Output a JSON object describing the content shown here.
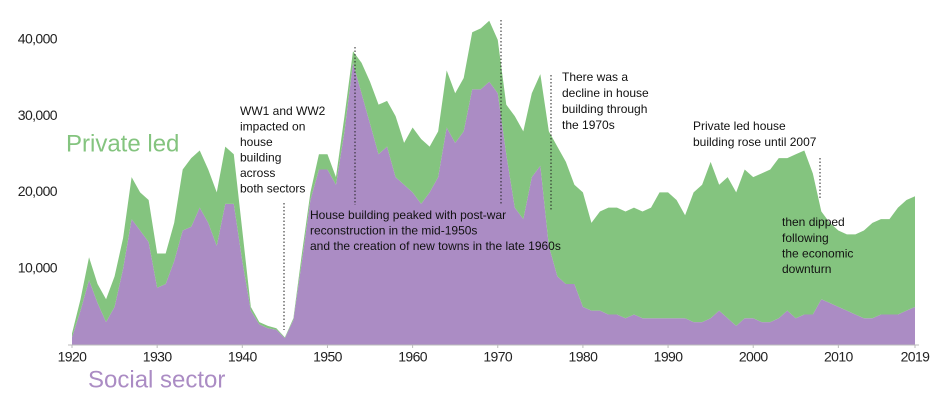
{
  "chart_data": {
    "type": "stacked_area",
    "x": [
      1920,
      1921,
      1922,
      1923,
      1924,
      1925,
      1926,
      1927,
      1928,
      1929,
      1930,
      1931,
      1932,
      1933,
      1934,
      1935,
      1936,
      1937,
      1938,
      1939,
      1940,
      1941,
      1942,
      1943,
      1944,
      1945,
      1946,
      1947,
      1948,
      1949,
      1950,
      1951,
      1952,
      1953,
      1954,
      1955,
      1956,
      1957,
      1958,
      1959,
      1960,
      1961,
      1962,
      1963,
      1964,
      1965,
      1966,
      1967,
      1968,
      1969,
      1970,
      1971,
      1972,
      1973,
      1974,
      1975,
      1976,
      1977,
      1978,
      1979,
      1980,
      1981,
      1982,
      1983,
      1984,
      1985,
      1986,
      1987,
      1988,
      1989,
      1990,
      1991,
      1992,
      1993,
      1994,
      1995,
      1996,
      1997,
      1998,
      1999,
      2000,
      2001,
      2002,
      2003,
      2004,
      2005,
      2006,
      2007,
      2008,
      2009,
      2010,
      2011,
      2012,
      2013,
      2014,
      2015,
      2016,
      2017,
      2018,
      2019
    ],
    "series": [
      {
        "name": "Social sector",
        "color": "#ab8cc4",
        "values": [
          1000,
          4500,
          8500,
          5500,
          3000,
          5000,
          10000,
          16500,
          15000,
          13500,
          7500,
          8000,
          11000,
          15000,
          15500,
          18000,
          16000,
          13000,
          18500,
          18500,
          11000,
          4500,
          2700,
          2200,
          2000,
          900,
          3300,
          11000,
          19000,
          23000,
          23000,
          21000,
          28000,
          37000,
          33000,
          29000,
          25000,
          26000,
          22000,
          21000,
          20000,
          18500,
          20000,
          22000,
          28500,
          26500,
          28000,
          33500,
          33500,
          34500,
          33000,
          25000,
          18000,
          16500,
          22000,
          23500,
          13000,
          9000,
          8000,
          8000,
          5000,
          4500,
          4500,
          4000,
          4000,
          3500,
          4000,
          3500,
          3500,
          3500,
          3500,
          3500,
          3500,
          3000,
          3000,
          3500,
          4500,
          3500,
          2500,
          3500,
          3500,
          3000,
          3000,
          3500,
          4500,
          3500,
          4000,
          4000,
          6000,
          5500,
          5000,
          4500,
          4000,
          3500,
          3500,
          4000,
          4000,
          4000,
          4500,
          5000
        ]
      },
      {
        "name": "Private led",
        "color": "#84c47f",
        "values": [
          500,
          1500,
          3000,
          2500,
          3000,
          4000,
          4000,
          5500,
          5000,
          5500,
          4500,
          4000,
          5000,
          8000,
          9000,
          7500,
          7000,
          7000,
          7500,
          6500,
          4000,
          500,
          300,
          300,
          200,
          100,
          200,
          1000,
          1000,
          2000,
          2000,
          1000,
          2000,
          1500,
          4000,
          5500,
          6500,
          6000,
          8000,
          5500,
          8500,
          8500,
          6000,
          6000,
          7500,
          6500,
          7000,
          7500,
          8000,
          8000,
          7000,
          6500,
          12000,
          11500,
          11000,
          12000,
          15000,
          17000,
          16000,
          13000,
          15000,
          11500,
          13000,
          14000,
          14000,
          14000,
          14000,
          14000,
          14500,
          16500,
          16500,
          15500,
          13500,
          17000,
          18000,
          20500,
          16500,
          18500,
          17500,
          19500,
          18500,
          19500,
          20000,
          21000,
          20000,
          21500,
          21500,
          18500,
          11500,
          10500,
          10000,
          10000,
          10500,
          11500,
          12500,
          12500,
          12500,
          14000,
          14500,
          14500
        ]
      }
    ],
    "xlim": [
      1920,
      2019
    ],
    "ylim": [
      0,
      44000
    ],
    "xticks": [
      1920,
      1930,
      1940,
      1950,
      1960,
      1970,
      1980,
      1990,
      2000,
      2010,
      2019
    ],
    "yticks": [
      {
        "value": 10000,
        "label": "10,000"
      },
      {
        "value": 20000,
        "label": "20,000"
      },
      {
        "value": 30000,
        "label": "30,000"
      },
      {
        "value": 40000,
        "label": "40,000"
      }
    ],
    "annotations": [
      {
        "lines": [
          "WW1 and WW2",
          "impacted on",
          "house",
          "building",
          "across",
          "both sectors"
        ]
      },
      {
        "lines": [
          "House building peaked with  post-war",
          "reconstruction in the mid-1950s",
          "and the creation of new towns in the late 1960s"
        ]
      },
      {
        "lines": [
          "There was a",
          "decline in house",
          "building through",
          "the 1970s"
        ]
      },
      {
        "lines": [
          "Private led house",
          "building rose until 2007"
        ]
      },
      {
        "lines": [
          "then dipped",
          "following",
          "the economic",
          "downturn"
        ]
      }
    ]
  }
}
